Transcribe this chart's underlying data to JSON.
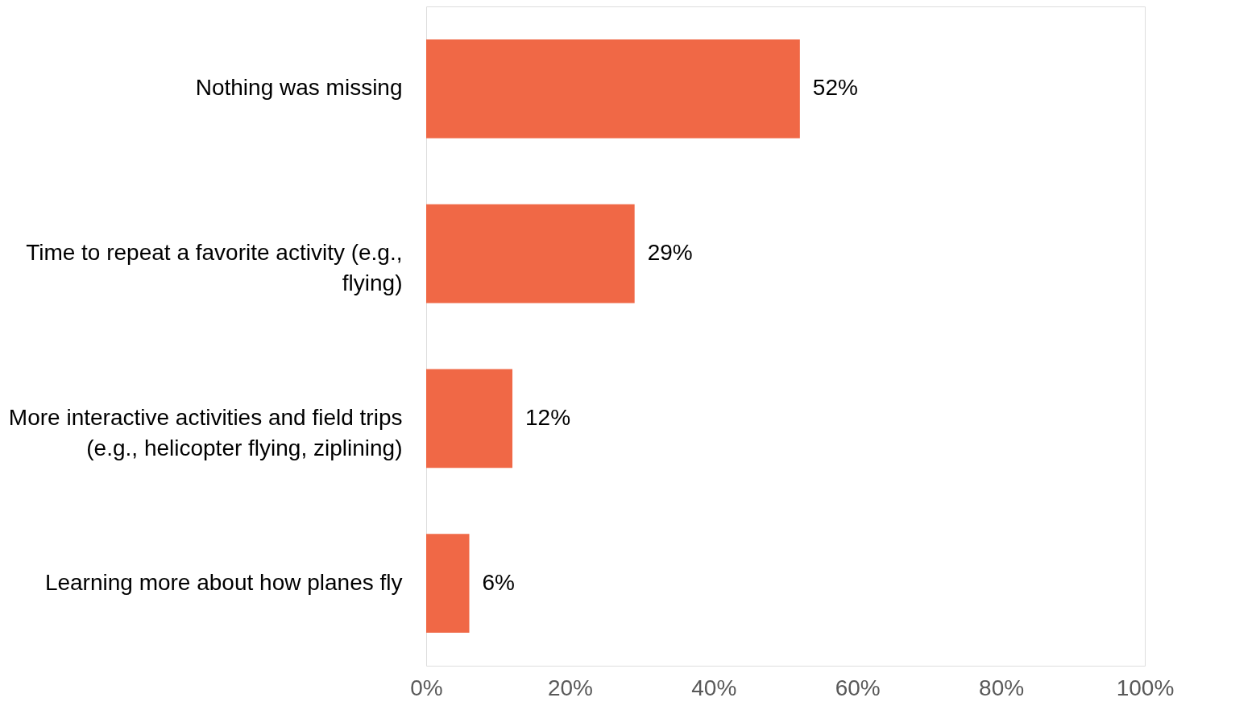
{
  "chart_data": {
    "type": "bar",
    "orientation": "horizontal",
    "categories": [
      "Nothing was missing",
      "Time to repeat a favorite activity (e.g., flying)",
      "More interactive activities and field trips (e.g., helicopter flying, ziplining)",
      "Learning more about how planes fly"
    ],
    "values": [
      52,
      29,
      12,
      6
    ],
    "color": "#f06846",
    "value_labels": [
      "52%",
      "29%",
      "12%",
      "6%"
    ],
    "xlim": [
      0,
      100
    ],
    "xticks": [
      {
        "value": 0,
        "label": "0%"
      },
      {
        "value": 20,
        "label": "20%"
      },
      {
        "value": 40,
        "label": "40%"
      },
      {
        "value": 60,
        "label": "60%"
      },
      {
        "value": 80,
        "label": "80%"
      },
      {
        "value": 100,
        "label": "100%"
      }
    ],
    "grid": false
  }
}
